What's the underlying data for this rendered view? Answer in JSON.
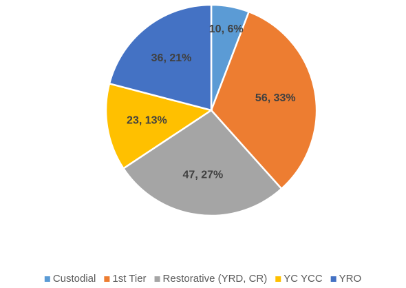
{
  "chart_data": {
    "type": "pie",
    "categories": [
      "Custodial",
      "1st Tier",
      "Restorative (YRD, CR)",
      "YC YCC",
      "YRO"
    ],
    "values": [
      10,
      56,
      47,
      23,
      36
    ],
    "value_labels": [
      "10, 6%",
      "56, 33%",
      "47, 27%",
      "23, 13%",
      "36, 21%"
    ],
    "colors": [
      "#5b9bd5",
      "#ed7d31",
      "#a5a5a5",
      "#ffc000",
      "#4472c4"
    ],
    "legend": "bottom"
  }
}
